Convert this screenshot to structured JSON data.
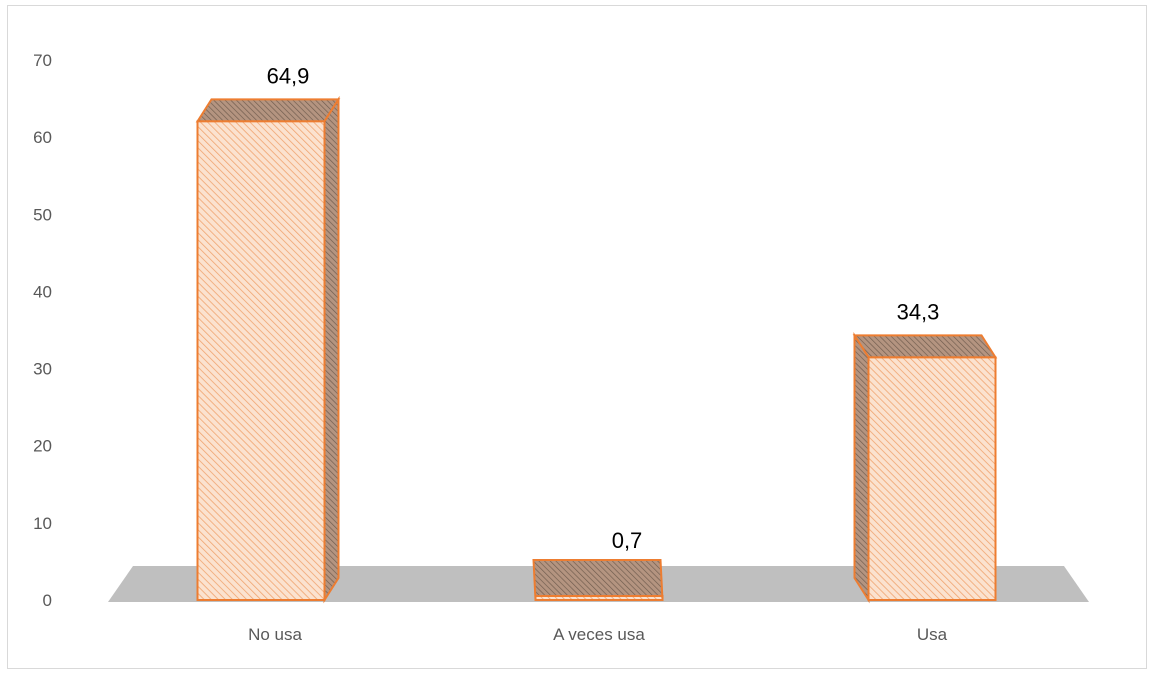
{
  "chart_data": {
    "type": "bar",
    "style": "3d-column",
    "categories": [
      "No usa",
      "A veces usa",
      "Usa"
    ],
    "values": [
      64.9,
      0.7,
      34.3
    ],
    "data_labels": [
      "64,9",
      "0,7",
      "34,3"
    ],
    "y_ticks": [
      "0",
      "10",
      "20",
      "30",
      "40",
      "50",
      "60",
      "70"
    ],
    "ylim": [
      0,
      70
    ],
    "grid": false,
    "legend": "none",
    "colors": {
      "bar_fill": "#fbe2cf",
      "bar_hatch": "#f0a470",
      "bar_edge": "#ed7d31",
      "floor": "#bfbfbf",
      "side_dark": "#a88a76"
    }
  }
}
